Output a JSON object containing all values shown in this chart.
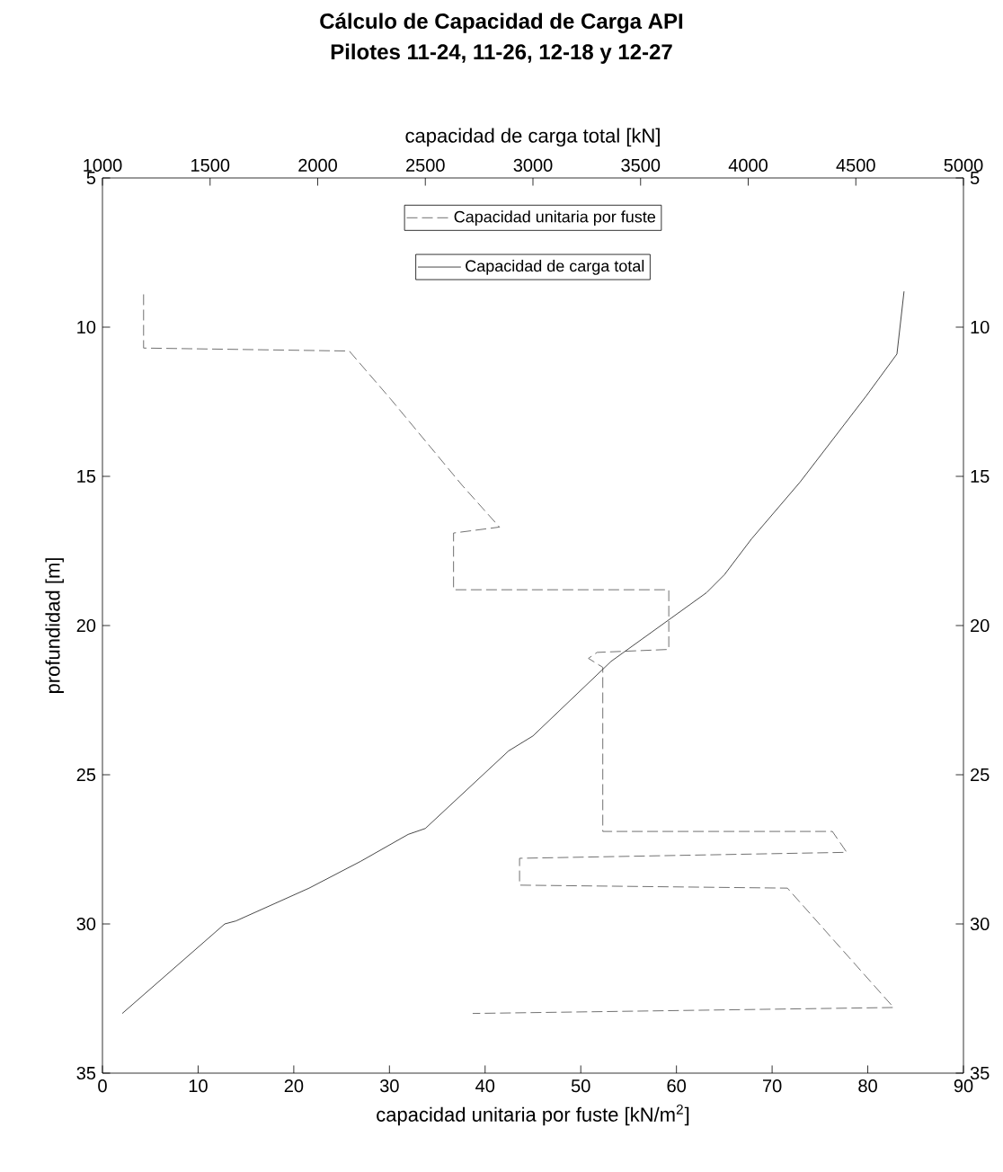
{
  "chart_data": {
    "type": "line",
    "title": "Cálculo de Capacidad de Carga API",
    "subtitle": "Pilotes 11-24, 11-26, 12-18 y 12-27",
    "xlabel": "capacidad unitaria por fuste [kN/m$^{2}$]",
    "ylabel": "profundidad [m]",
    "x2label": "capacidad de carga total [kN]",
    "xlim": [
      0,
      90
    ],
    "xticks": [
      0,
      10,
      20,
      30,
      40,
      50,
      60,
      70,
      80,
      90
    ],
    "x2lim": [
      1000,
      5000
    ],
    "x2ticks": [
      1000,
      1500,
      2000,
      2500,
      3000,
      3500,
      4000,
      4500,
      5000
    ],
    "ylim": [
      35,
      5
    ],
    "yticks": [
      5,
      10,
      15,
      20,
      25,
      30,
      35
    ],
    "y2lim": [
      35,
      5
    ],
    "y2ticks": [
      5,
      10,
      15,
      20,
      25,
      30,
      35
    ],
    "legend": "top",
    "grid": false,
    "marker": "none",
    "series": [
      {
        "name": "Capacidad unitaria por fuste",
        "color": "#4d4d4d",
        "line_style": "dashed",
        "x": [
          4.3,
          4.3,
          25.8,
          30.1,
          37.6,
          41.5,
          36.7,
          36.7,
          59.2,
          59.2,
          51.7,
          50.8,
          52.3,
          52.3,
          76.3,
          77.8,
          43.6,
          43.6,
          71.6,
          82.7,
          38.7
        ],
        "values": [
          8.9,
          10.7,
          10.8,
          12.4,
          15.3,
          16.7,
          16.9,
          18.8,
          18.8,
          20.8,
          20.9,
          21.1,
          21.4,
          26.9,
          26.9,
          27.6,
          27.8,
          28.7,
          28.8,
          32.8,
          33.0
        ]
      },
      {
        "name": "Capacidad de carga total",
        "color": "#1a1a1a",
        "line_style": "solid",
        "axis": "x2",
        "x": [
          1092,
          1568,
          1620,
          1960,
          2200,
          2420,
          2500,
          2887,
          3000,
          3363,
          3806,
          3889,
          4015,
          4240,
          4549,
          4691,
          4724
        ],
        "values": [
          33.0,
          30.0,
          29.9,
          28.8,
          27.9,
          27.0,
          26.8,
          24.2,
          23.7,
          21.2,
          18.9,
          18.3,
          17.1,
          15.2,
          12.3,
          10.9,
          8.8
        ]
      }
    ]
  }
}
